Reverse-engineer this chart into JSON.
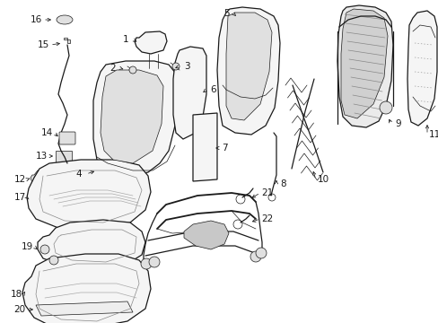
{
  "background_color": "#ffffff",
  "line_color": "#1a1a1a",
  "label_color": "#000000",
  "figsize": [
    4.89,
    3.6
  ],
  "dpi": 100,
  "label_fontsize": 7.5,
  "lw_main": 0.9,
  "lw_thin": 0.5,
  "lw_thick": 1.3,
  "fill_light": "#f5f5f5",
  "fill_mid": "#e0e0e0",
  "fill_dark": "#c8c8c8"
}
